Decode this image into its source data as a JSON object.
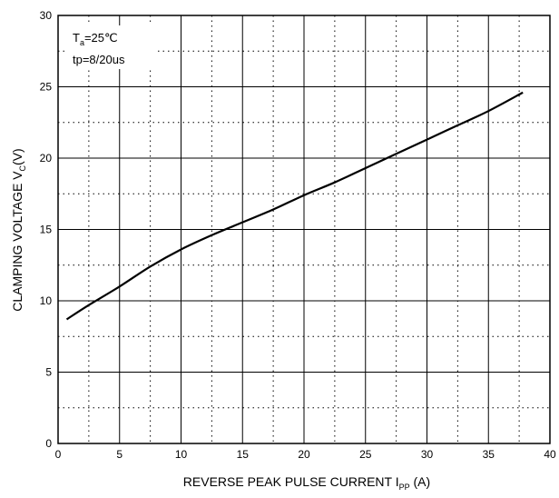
{
  "chart_data": {
    "type": "line",
    "xlabel": {
      "main": "REVERSE PEAK PULSE CURRENT  I",
      "sub": "PP",
      "tail": " (A)"
    },
    "ylabel": {
      "main": "CLAMPING VOLTAGE  V",
      "sub": "C",
      "tail": "(V)"
    },
    "xlim": [
      0,
      40
    ],
    "ylim": [
      0,
      30
    ],
    "x_ticks": [
      0,
      5,
      10,
      15,
      20,
      25,
      30,
      35,
      40
    ],
    "y_ticks": [
      0,
      5,
      10,
      15,
      20,
      25,
      30
    ],
    "major_grid": true,
    "minor_grid": "dotted",
    "annotations": [
      {
        "main": "T",
        "sub": "a",
        "tail": "=25℃"
      },
      {
        "main": "tp=8/20us",
        "sub": "",
        "tail": ""
      }
    ],
    "series": [
      {
        "x": [
          0.7,
          2.5,
          5,
          7.5,
          10,
          12.5,
          15,
          17.5,
          20,
          22.5,
          25,
          27.5,
          30,
          32.5,
          35,
          37.8
        ],
        "values": [
          8.7,
          9.7,
          11.0,
          12.4,
          13.6,
          14.6,
          15.5,
          16.4,
          17.4,
          18.3,
          19.3,
          20.3,
          21.3,
          22.3,
          23.3,
          24.6
        ]
      }
    ]
  }
}
